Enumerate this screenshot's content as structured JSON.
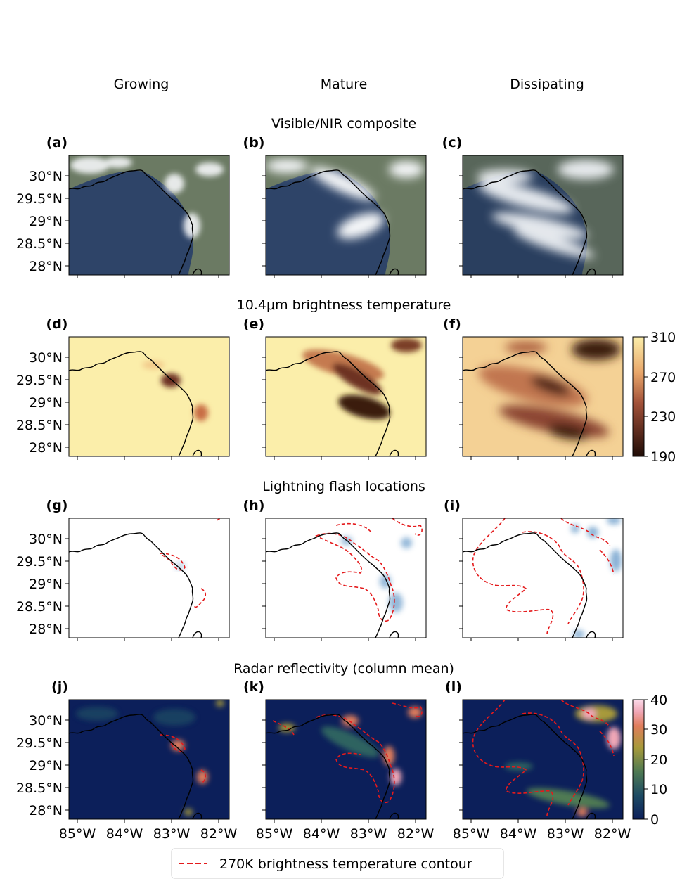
{
  "column_titles": [
    "Growing",
    "Mature",
    "Dissipating"
  ],
  "row_titles": [
    "Visible/NIR composite",
    "10.4μm brightness temperature",
    "Lightning flash locations",
    "Radar reflectivity (column mean)"
  ],
  "panel_labels": [
    "(a)",
    "(b)",
    "(c)",
    "(d)",
    "(e)",
    "(f)",
    "(g)",
    "(h)",
    "(i)",
    "(j)",
    "(k)",
    "(l)"
  ],
  "axes": {
    "y_ticks": [
      "30°N",
      "29.5°N",
      "29°N",
      "28.5°N",
      "28°N"
    ],
    "x_ticks": [
      "85°W",
      "84°W",
      "83°W",
      "82°W"
    ]
  },
  "legend": {
    "label": "270K brightness temperature contour",
    "line_color": "#e41a1c",
    "line_style": "dashed"
  },
  "colors": {
    "ocean_visible": "#2e4468",
    "land_visible": "#6b7a63",
    "cloud": "#f4f6f8",
    "bt_warm": "#fbeeaa",
    "bt_cold": "#2b130d",
    "radar_bg": "#0c1f5a",
    "lightning": "#3c7fba",
    "coastline": "#000000",
    "contour": "#e41a1c"
  },
  "chart_data": [
    {
      "type": "heatmap",
      "panel": "(a)",
      "title": "Visible/NIR composite",
      "column": "Growing"
    },
    {
      "type": "heatmap",
      "panel": "(b)",
      "column": "Mature"
    },
    {
      "type": "heatmap",
      "panel": "(c)",
      "column": "Dissipating"
    },
    {
      "type": "heatmap",
      "panel": "(d)",
      "title": "10.4μm brightness temperature",
      "column": "Growing"
    },
    {
      "type": "heatmap",
      "panel": "(e)",
      "column": "Mature"
    },
    {
      "type": "heatmap",
      "panel": "(f)",
      "column": "Dissipating",
      "colorbar": {
        "range": [
          190,
          310
        ],
        "ticks": [
          "310",
          "270",
          "230",
          "190"
        ]
      }
    },
    {
      "type": "scatter",
      "panel": "(g)",
      "title": "Lightning flash locations",
      "column": "Growing"
    },
    {
      "type": "scatter",
      "panel": "(h)",
      "column": "Mature"
    },
    {
      "type": "scatter",
      "panel": "(i)",
      "column": "Dissipating"
    },
    {
      "type": "heatmap",
      "panel": "(j)",
      "title": "Radar reflectivity (column mean)",
      "column": "Growing"
    },
    {
      "type": "heatmap",
      "panel": "(k)",
      "column": "Mature"
    },
    {
      "type": "heatmap",
      "panel": "(l)",
      "column": "Dissipating",
      "colorbar": {
        "range": [
          0,
          40
        ],
        "ticks": [
          "40",
          "30",
          "20",
          "10",
          "0"
        ]
      }
    }
  ]
}
